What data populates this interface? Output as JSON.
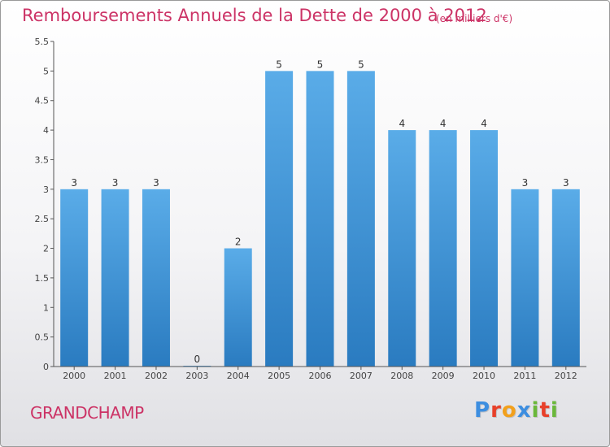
{
  "header": {
    "title": "Remboursements Annuels de la Dette de 2000 à 2012",
    "unit": "(en milliers d'€)"
  },
  "footer": {
    "commune": "GRANDCHAMP",
    "logo_letters": [
      "P",
      "r",
      "o",
      "x",
      "i",
      "t",
      "i"
    ],
    "logo_colors": [
      "#3d8ee0",
      "#e8402a",
      "#f2a01c",
      "#3d8ee0",
      "#6ab83a",
      "#e8402a",
      "#6ab83a"
    ]
  },
  "chart_data": {
    "type": "bar",
    "categories": [
      "2000",
      "2001",
      "2002",
      "2003",
      "2004",
      "2005",
      "2006",
      "2007",
      "2008",
      "2009",
      "2010",
      "2011",
      "2012"
    ],
    "values": [
      3,
      3,
      3,
      0,
      2,
      5,
      5,
      5,
      4,
      4,
      4,
      3,
      3
    ],
    "labels": [
      "3",
      "3",
      "3",
      "0",
      "2",
      "5",
      "5",
      "5",
      "4",
      "4",
      "4",
      "3",
      "3"
    ],
    "yticks": [
      "0",
      "0.5",
      "1",
      "1.5",
      "2",
      "2.5",
      "3",
      "3.5",
      "4",
      "4.5",
      "5",
      "5.5"
    ],
    "ylim": [
      0,
      5.5
    ],
    "grid": false,
    "bar_color_top": "#5aace8",
    "bar_color_bottom": "#2a7bc0",
    "axis_color": "#555555"
  }
}
